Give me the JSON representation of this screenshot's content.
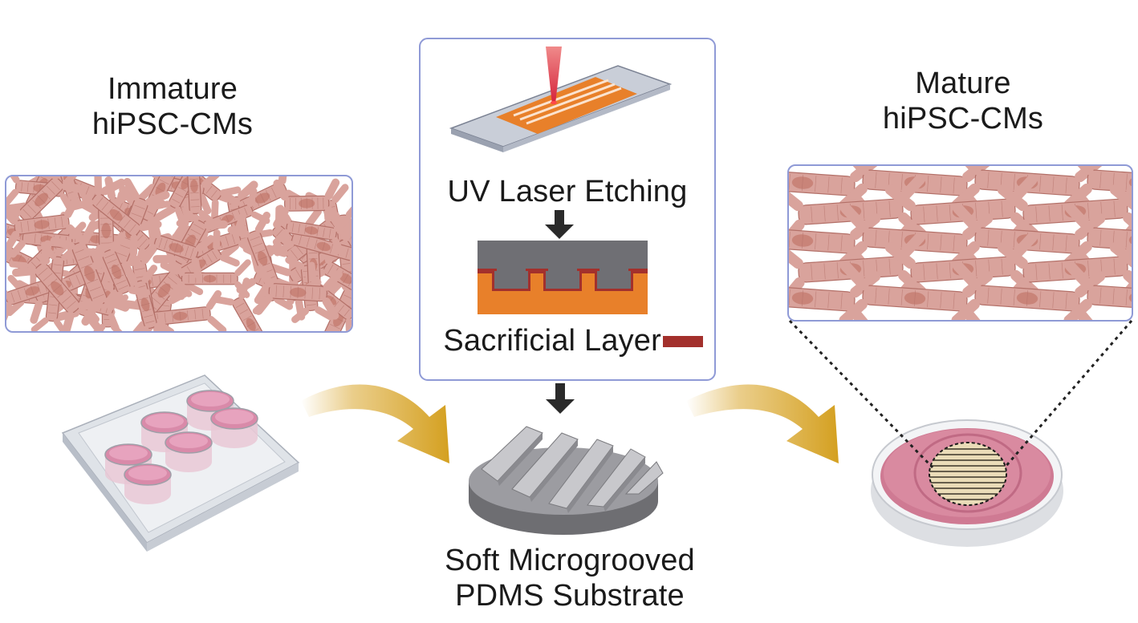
{
  "immature": {
    "line1": "Immature",
    "line2": "hiPSC-CMs"
  },
  "mature": {
    "line1": "Mature",
    "line2": "hiPSC-CMs"
  },
  "process": {
    "step1": "UV Laser Etching",
    "step2": "Sacrificial Layer"
  },
  "substrate": {
    "line1": "Soft Microgrooved",
    "line2": "PDMS Substrate"
  },
  "colors": {
    "panel_border": "#8f9ad6",
    "cell_fill": "#d9a39c",
    "cell_stroke": "#b37068",
    "orange": "#e8802a",
    "sacrificial": "#a3302c",
    "arrow_gold": "#d9a52a",
    "dish_pink": "#d7839a"
  },
  "icons": [
    "laser-beam-icon",
    "down-arrow-icon",
    "curved-arrow-icon",
    "well-plate-icon",
    "petri-dish-icon",
    "microgrooved-substrate-icon"
  ]
}
